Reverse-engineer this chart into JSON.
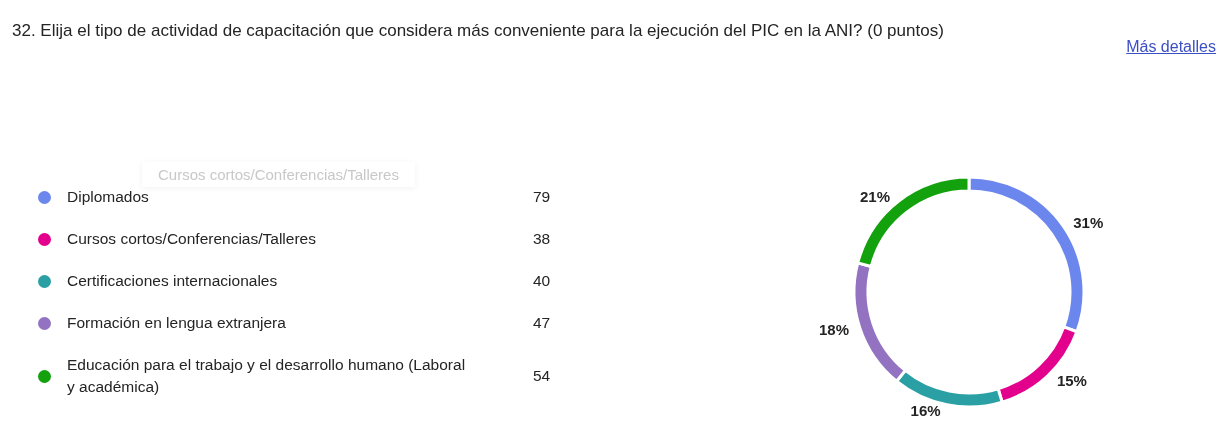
{
  "chart_data": {
    "type": "donut",
    "title": "32. Elija el tipo de actividad de capacitación que considera más conveniente para la ejecución del PIC en la ANI? (0 puntos)",
    "categories": [
      "Diplomados",
      "Cursos cortos/Conferencias/Talleres",
      "Certificaciones internacionales",
      "Formación en lengua extranjera",
      "Educación para el trabajo y el desarrollo humano (Laboral y académica)"
    ],
    "values": [
      79,
      38,
      40,
      47,
      54
    ],
    "colors": [
      "#6b86ec",
      "#e3008c",
      "#2aa0a4",
      "#9373c1",
      "#13a10e"
    ],
    "data_labels": true,
    "legend": "left",
    "annotations": [
      "Más detalles",
      "Cursos cortos/Conferencias/Talleres",
      {
        "text": "31%",
        "x": "Diplomados"
      },
      {
        "text": "15%",
        "x": "Cursos cortos/Conferencias/Talleres"
      },
      {
        "text": "16%",
        "x": "Certificaciones internacionales"
      },
      {
        "text": "18%",
        "x": "Formación en lengua extranjera"
      },
      {
        "text": "21%",
        "x": "Educación para el trabajo y el desarrollo humano (Laboral y académica)"
      }
    ]
  }
}
